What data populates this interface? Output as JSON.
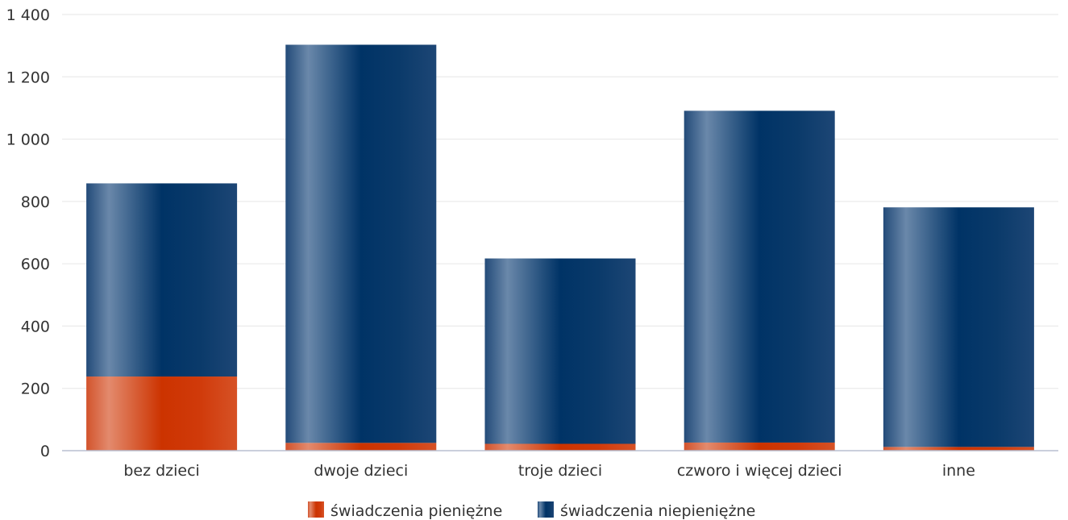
{
  "chart_data": {
    "type": "bar",
    "stacked": true,
    "categories": [
      "bez dzieci",
      "dwoje dzieci",
      "troje dzieci",
      "czworo i więcej dzieci",
      "inne"
    ],
    "series": [
      {
        "name": "świadczenia pieniężne",
        "values": [
          238,
          25,
          22,
          26,
          12
        ],
        "color": "#cc3300"
      },
      {
        "name": "świadczenia niepieniężne",
        "values": [
          620,
          1278,
          595,
          1065,
          769
        ],
        "color": "#003366"
      }
    ],
    "yticks": [
      "0",
      "200",
      "400",
      "600",
      "800",
      "1 000",
      "1 200",
      "1 400"
    ],
    "ylim": [
      0,
      1400
    ],
    "grid": true,
    "legend": "bottom-center"
  }
}
